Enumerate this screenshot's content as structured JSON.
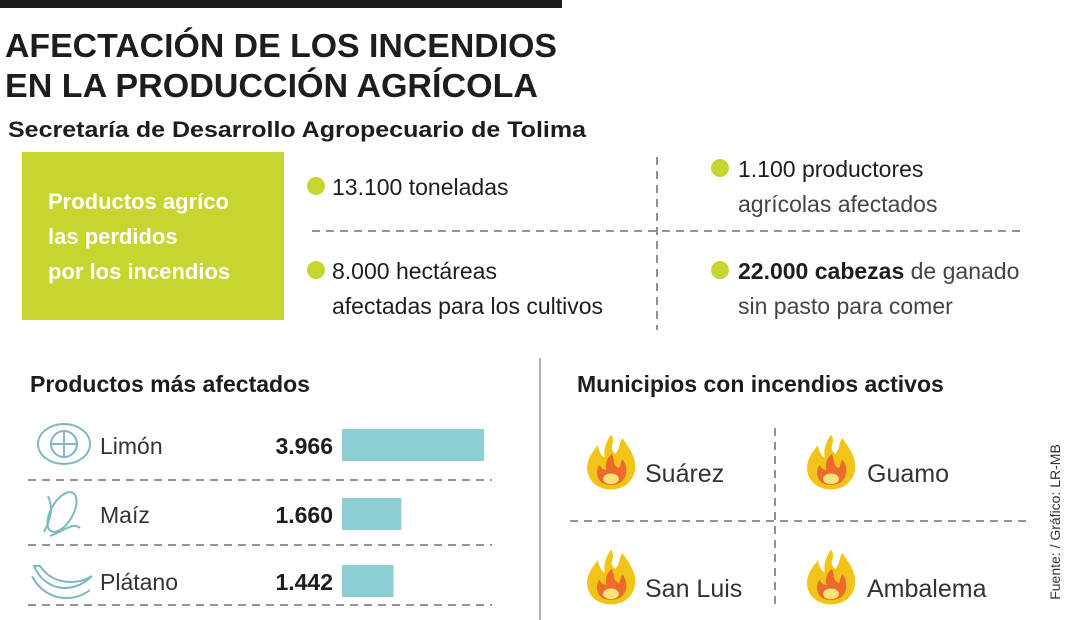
{
  "header": {
    "title_line1": "AFECTACIÓN DE LOS INCENDIOS",
    "title_line2": "EN LA PRODUCCIÓN AGRÍCOLA",
    "subtitle": "Secretaría de Desarrollo Agropecuario de Tolima"
  },
  "highlight": {
    "lines": [
      "Productos agríco",
      "las perdidos",
      "por los incendios"
    ]
  },
  "stats": [
    {
      "line1": "13.100 toneladas"
    },
    {
      "line1": "1.100 productores",
      "line2": "agrícolas afectados"
    },
    {
      "line1": "8.000 hectáreas",
      "line2": "afectadas para los cultivos"
    },
    {
      "line1_bold": "22.000 cabezas",
      "line1_rest": " de ganado",
      "line2": "sin pasto para comer"
    }
  ],
  "products": {
    "title": "Productos más afectados",
    "color": "#8dcfd4",
    "items": [
      {
        "name": "Limón",
        "value": 3966,
        "value_label": "3.966"
      },
      {
        "name": "Maíz",
        "value": 1660,
        "value_label": "1.660"
      },
      {
        "name": "Plátano",
        "value": 1442,
        "value_label": "1.442"
      }
    ]
  },
  "municipalities": {
    "title": "Municipios con incendios activos",
    "names": [
      "Suárez",
      "Guamo",
      "San Luis",
      "Ambalema"
    ]
  },
  "source": "Fuente: / Gráfico: LR-MB"
}
